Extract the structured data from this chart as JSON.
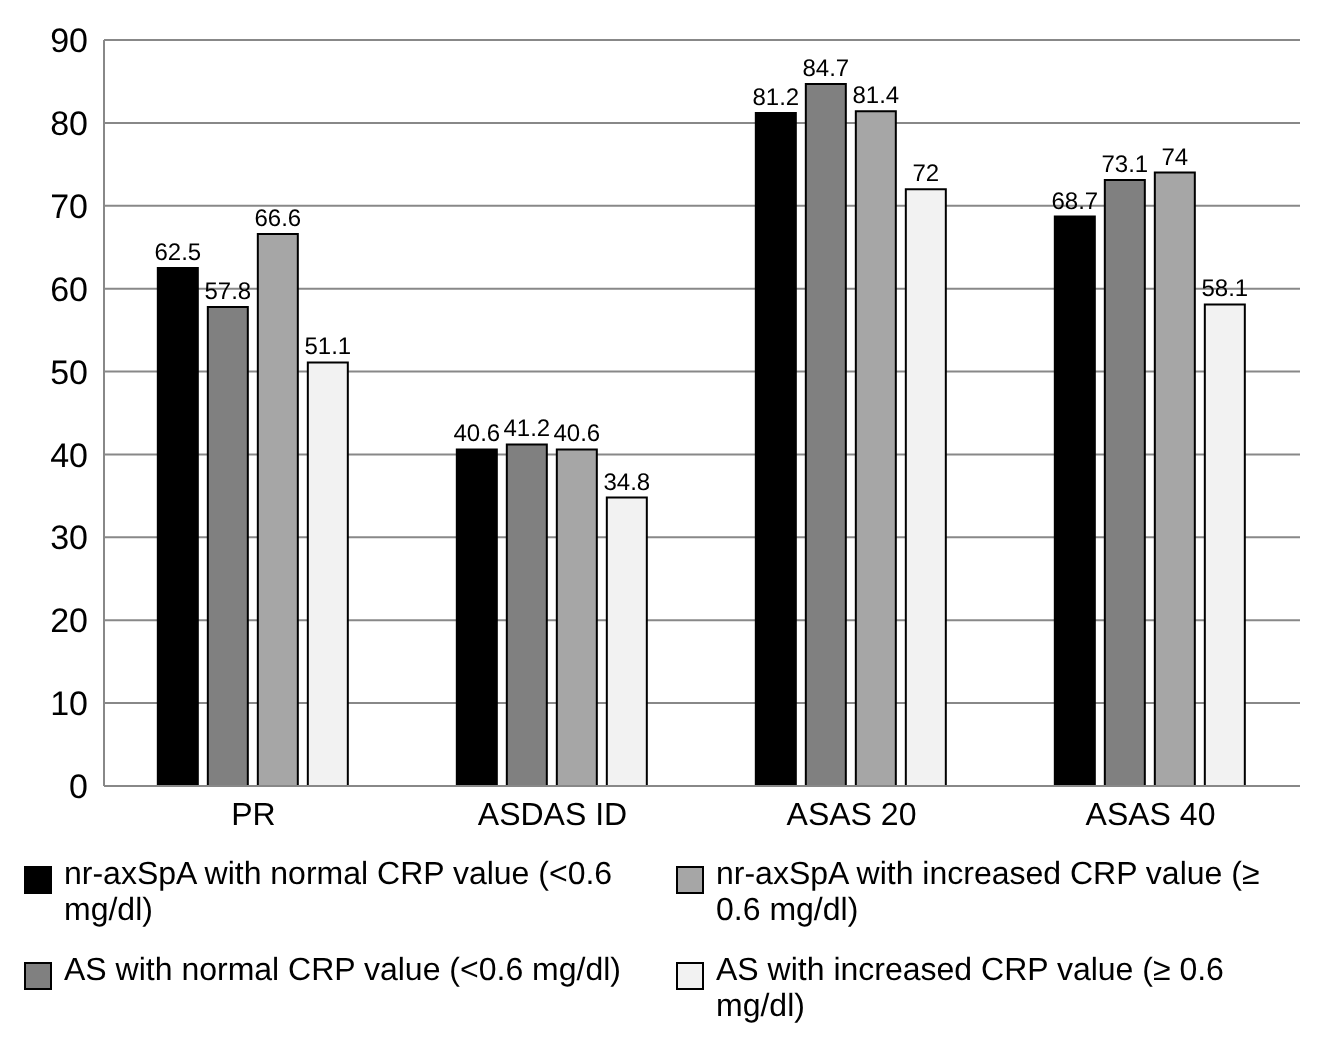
{
  "chart_data": {
    "type": "bar",
    "categories": [
      "PR",
      "ASDAS ID",
      "ASAS 20",
      "ASAS 40"
    ],
    "series": [
      {
        "name": "nr-axSpA with normal CRP value (<0.6 mg/dl)",
        "color": "#000000",
        "values": [
          62.5,
          40.6,
          81.2,
          68.7
        ]
      },
      {
        "name": "AS with normal CRP value (<0.6 mg/dl)",
        "color": "#808080",
        "values": [
          57.8,
          41.2,
          84.7,
          73.1
        ]
      },
      {
        "name": "nr-axSpA with increased CRP value (≥ 0.6 mg/dl)",
        "color": "#a6a6a6",
        "values": [
          66.6,
          40.6,
          81.4,
          74
        ]
      },
      {
        "name": "AS with increased CRP value (≥ 0.6 mg/dl)",
        "color": "#f2f2f2",
        "values": [
          51.1,
          34.8,
          72,
          58.1
        ]
      }
    ],
    "ylim": [
      0,
      90
    ],
    "yticks": [
      0,
      10,
      20,
      30,
      40,
      50,
      60,
      70,
      80,
      90
    ],
    "grid": "y",
    "legend": "bottom",
    "data_labels": true
  }
}
